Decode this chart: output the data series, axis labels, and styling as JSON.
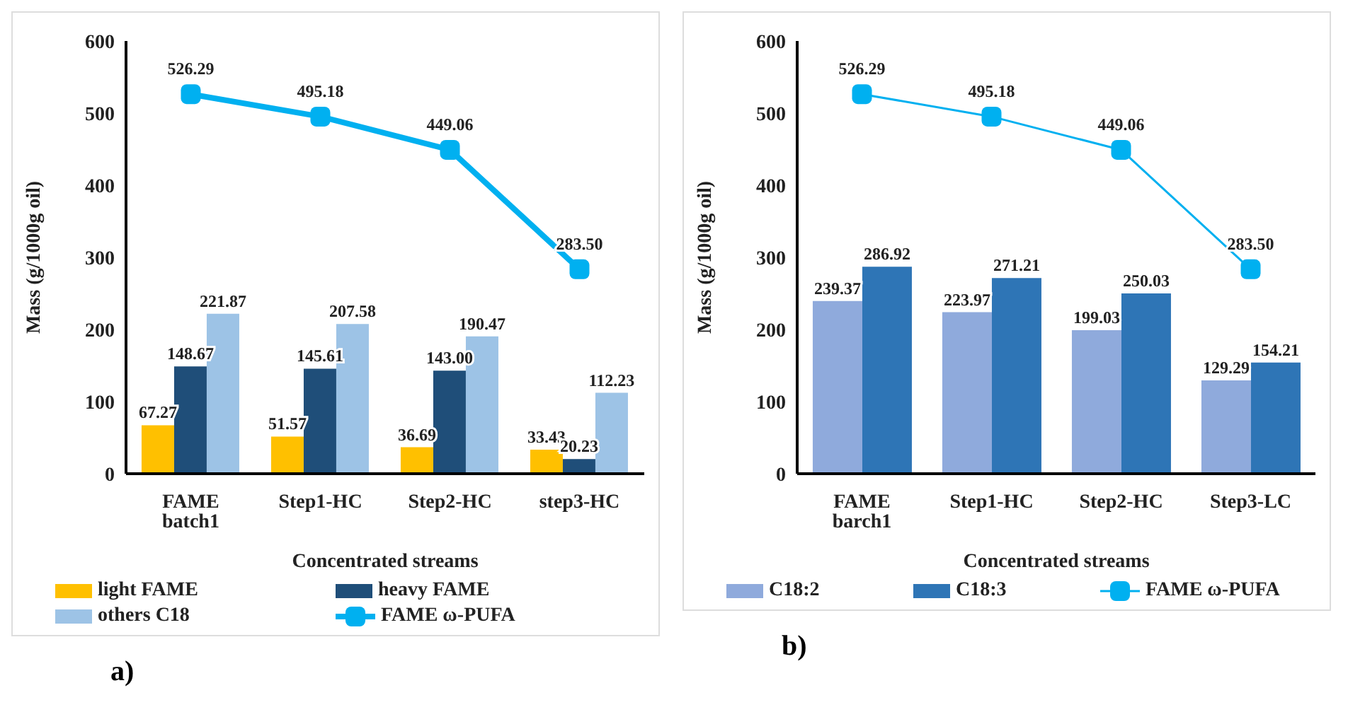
{
  "chart_data": [
    {
      "type": "bar",
      "categories": [
        "FAME batch1",
        "Step1-HC",
        "Step2-HC",
        "step3-HC"
      ],
      "xlabel": "Concentrated streams",
      "ylabel": "Mass (g/1000g oil)",
      "ylim": [
        0,
        600
      ],
      "yticks": [
        0,
        100,
        200,
        300,
        400,
        500,
        600
      ],
      "legend": "bottom",
      "marker": "square",
      "annotations": [
        "a)"
      ],
      "series": [
        {
          "name": "light FAME",
          "color": "#ffc000",
          "values": [
            67.27,
            51.57,
            36.69,
            33.43
          ],
          "value_labels": [
            "67.27",
            "51.57",
            "36.69",
            "33.43"
          ]
        },
        {
          "name": "heavy FAME",
          "color": "#1f4e79",
          "values": [
            148.67,
            145.61,
            143.0,
            20.23
          ],
          "value_labels": [
            "148.67",
            "145.61",
            "143.00",
            "20.23"
          ]
        },
        {
          "name": "others C18",
          "color": "#9dc3e6",
          "values": [
            221.87,
            207.58,
            190.47,
            112.23
          ],
          "value_labels": [
            "221.87",
            "207.58",
            "190.47",
            "112.23"
          ]
        },
        {
          "name": "FAME ω-PUFA",
          "type": "line",
          "color": "#00b0f0",
          "values": [
            526.29,
            495.18,
            449.06,
            283.5
          ],
          "value_labels": [
            "526.29",
            "495.18",
            "449.06",
            "283.50"
          ]
        }
      ]
    },
    {
      "type": "bar",
      "categories": [
        "FAME barch1",
        "Step1-HC",
        "Step2-HC",
        "Step3-LC"
      ],
      "xlabel": "Concentrated streams",
      "ylabel": "Mass (g/1000g oil)",
      "ylim": [
        0,
        600
      ],
      "yticks": [
        0,
        100,
        200,
        300,
        400,
        500,
        600
      ],
      "legend": "bottom",
      "marker": "square",
      "annotations": [
        "b)"
      ],
      "series": [
        {
          "name": "C18:2",
          "color": "#8faadc",
          "values": [
            239.37,
            223.97,
            199.03,
            129.29
          ],
          "value_labels": [
            "239.37",
            "223.97",
            "199.03",
            "129.29"
          ]
        },
        {
          "name": "C18:3",
          "color": "#2e75b6",
          "values": [
            286.92,
            271.21,
            250.03,
            154.21
          ],
          "value_labels": [
            "286.92",
            "271.21",
            "250.03",
            "154.21"
          ]
        },
        {
          "name": "FAME ω-PUFA",
          "type": "line",
          "color": "#00b0f0",
          "values": [
            526.29,
            495.18,
            449.06,
            283.5
          ],
          "value_labels": [
            "526.29",
            "495.18",
            "449.06",
            "283.50"
          ]
        }
      ]
    }
  ]
}
